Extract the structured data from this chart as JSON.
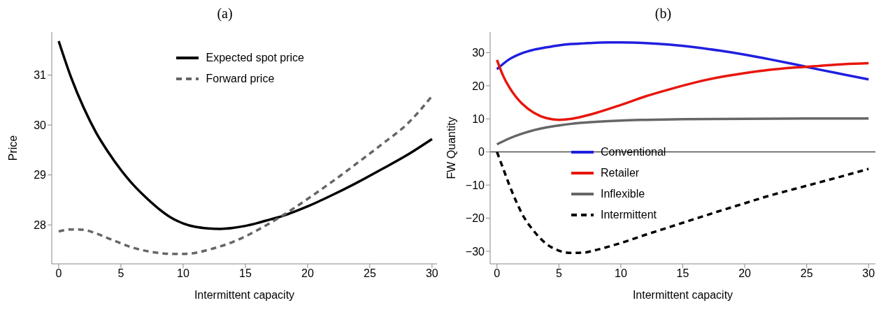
{
  "chart_data": [
    {
      "type": "line",
      "title": "(a)",
      "xlabel": "Intermittent capacity",
      "ylabel": "Price",
      "xlim": [
        -0.56,
        30.4
      ],
      "ylim": [
        27.22,
        31.86
      ],
      "xticks": [
        0,
        5,
        10,
        15,
        20,
        25,
        30
      ],
      "yticks": [
        28,
        29,
        30,
        31
      ],
      "grid": false,
      "legend": "top right",
      "series": [
        {
          "name": "Expected spot price",
          "color": "#000000",
          "line_style": "solid",
          "x": [
            0,
            1,
            2,
            3,
            4,
            5,
            6,
            7,
            8,
            9,
            10,
            11,
            12,
            13,
            14,
            15,
            16,
            17,
            18,
            19,
            20,
            22,
            24,
            26,
            28,
            30
          ],
          "values": [
            31.68,
            30.95,
            30.35,
            29.85,
            29.45,
            29.1,
            28.8,
            28.55,
            28.33,
            28.15,
            28.03,
            27.96,
            27.93,
            27.92,
            27.94,
            27.98,
            28.04,
            28.11,
            28.18,
            28.27,
            28.37,
            28.6,
            28.85,
            29.12,
            29.4,
            29.72
          ]
        },
        {
          "name": "Forward price",
          "color": "#666666",
          "line_style": "dashed",
          "x": [
            0,
            1,
            2,
            3,
            4,
            5,
            6,
            7,
            8,
            9,
            10,
            11,
            12,
            13,
            14,
            15,
            16,
            17,
            18,
            19,
            20,
            22,
            24,
            26,
            28,
            30
          ],
          "values": [
            27.87,
            27.91,
            27.9,
            27.83,
            27.73,
            27.63,
            27.54,
            27.48,
            27.44,
            27.42,
            27.42,
            27.44,
            27.5,
            27.57,
            27.66,
            27.77,
            27.9,
            28.04,
            28.19,
            28.35,
            28.52,
            28.87,
            29.24,
            29.62,
            30.02,
            30.58
          ]
        }
      ]
    },
    {
      "type": "line",
      "title": "(b)",
      "xlabel": "Intermittent capacity",
      "ylabel": "FW Quantity",
      "xlim": [
        -0.55,
        30.55
      ],
      "ylim": [
        -33.8,
        36.2
      ],
      "xticks": [
        0,
        5,
        10,
        15,
        20,
        25,
        30
      ],
      "yticks": [
        -30,
        -20,
        -10,
        0,
        10,
        20,
        30
      ],
      "grid": false,
      "legend": "center",
      "ref_lines": [
        {
          "axis": "y",
          "value": 0,
          "color": "#000000"
        }
      ],
      "series": [
        {
          "name": "Conventional",
          "color": "#1f1fe0",
          "line_style": "solid",
          "x": [
            0,
            1,
            2,
            3,
            4,
            5,
            6,
            7,
            8,
            9,
            10,
            12,
            14,
            16,
            18,
            20,
            22,
            24,
            26,
            28,
            30
          ],
          "values": [
            25,
            28,
            29.8,
            30.9,
            31.6,
            32.2,
            32.6,
            32.8,
            33,
            33.1,
            33.1,
            32.9,
            32.4,
            31.6,
            30.6,
            29.4,
            28,
            26.5,
            24.9,
            23.4,
            21.9
          ]
        },
        {
          "name": "Retailer",
          "color": "#e8160c",
          "line_style": "solid",
          "x": [
            0,
            0.5,
            1,
            1.5,
            2,
            3,
            4,
            5,
            6,
            7,
            8,
            10,
            12,
            14,
            16,
            18,
            20,
            22,
            24,
            26,
            28,
            30
          ],
          "values": [
            27.8,
            23,
            19.5,
            16.8,
            14.7,
            11.8,
            10.2,
            9.7,
            10,
            10.8,
            11.8,
            14.2,
            16.8,
            19,
            21,
            22.6,
            23.8,
            24.8,
            25.5,
            26,
            26.5,
            26.8
          ]
        },
        {
          "name": "Inflexible",
          "color": "#666666",
          "line_style": "solid",
          "x": [
            0,
            1,
            2,
            3,
            4,
            5,
            6,
            8,
            10,
            12,
            15,
            20,
            25,
            30
          ],
          "values": [
            2.3,
            4.1,
            5.5,
            6.6,
            7.4,
            8,
            8.5,
            9.1,
            9.5,
            9.7,
            9.9,
            10,
            10.1,
            10.1
          ]
        },
        {
          "name": "Intermittent",
          "color": "#000000",
          "line_style": "dashed",
          "x": [
            0,
            0.5,
            1,
            1.5,
            2,
            3,
            4,
            5,
            6,
            7,
            8,
            10,
            12,
            14,
            16,
            18,
            20,
            22,
            24,
            26,
            28,
            30
          ],
          "values": [
            0,
            -5,
            -10,
            -14.5,
            -18.5,
            -24,
            -27.8,
            -29.8,
            -30.5,
            -30.4,
            -29.6,
            -27.5,
            -25,
            -22.6,
            -20.2,
            -17.8,
            -15.5,
            -13.2,
            -11.2,
            -9.2,
            -7.2,
            -5.1
          ]
        }
      ]
    }
  ]
}
